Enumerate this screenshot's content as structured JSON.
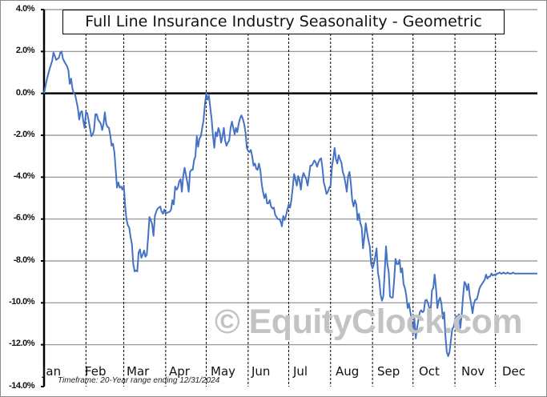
{
  "chart_data": {
    "type": "line",
    "title": "Full Line Insurance Industry Seasonality - Geometric",
    "xlabel": "",
    "ylabel": "",
    "ylim": [
      -14.0,
      4.0
    ],
    "yticks": [
      "4.0%",
      "2.0%",
      "0.0%",
      "-2.0%",
      "-4.0%",
      "-6.0%",
      "-8.0%",
      "-10.0%",
      "-12.0%",
      "-14.0%"
    ],
    "ytick_values": [
      4,
      2,
      0,
      -2,
      -4,
      -6,
      -8,
      -10,
      -12,
      -14
    ],
    "categories": [
      "Jan",
      "Feb",
      "Mar",
      "Apr",
      "May",
      "Jun",
      "Jul",
      "Aug",
      "Sep",
      "Oct",
      "Nov",
      "Dec"
    ],
    "grid": {
      "horizontal": true,
      "vertical_dashed_month_separators": true
    },
    "legend": null,
    "annotation": "Timeframe: 20-Year range ending 12/31/2024",
    "watermark": "© EquityClock.com",
    "series": [
      {
        "name": "Full Line Insurance Industry",
        "color": "#4472c4",
        "x_day": [
          0,
          2,
          4,
          6,
          7,
          9,
          11,
          12,
          13,
          14,
          16,
          17,
          18,
          19,
          20,
          21,
          22,
          23,
          25,
          26,
          27,
          28,
          29,
          30,
          31,
          32,
          33,
          35,
          36,
          37,
          38,
          39,
          40,
          42,
          43,
          44,
          45,
          46,
          47,
          48,
          49,
          50,
          51,
          52,
          53,
          54,
          55,
          56,
          57,
          58,
          59,
          60,
          61,
          62,
          63,
          64,
          65,
          66,
          67,
          68,
          69,
          70,
          71,
          72,
          73,
          74,
          75,
          76,
          77,
          78,
          79,
          80,
          81,
          82,
          83,
          84,
          86,
          87,
          88,
          89,
          90,
          91,
          93,
          94,
          95,
          96,
          97,
          98,
          99,
          100,
          101,
          102,
          103,
          104,
          105,
          106,
          107,
          108,
          109,
          110,
          111,
          112,
          113,
          114,
          115,
          116,
          117,
          118,
          119,
          120,
          121,
          122,
          123,
          124,
          125,
          126,
          127,
          128,
          129,
          130,
          131,
          132,
          133,
          134,
          135,
          136,
          137,
          138,
          139,
          140,
          141,
          142,
          143,
          144,
          145,
          146,
          147,
          148,
          149,
          150,
          151,
          152,
          153,
          154,
          155,
          156,
          157,
          158,
          159,
          160,
          161,
          162,
          163,
          164,
          165,
          166,
          167,
          168,
          169,
          170,
          171,
          172,
          173,
          174,
          175,
          176,
          177,
          178,
          179,
          180,
          181,
          182,
          183,
          184,
          185,
          186,
          187,
          188,
          189,
          190,
          191,
          192,
          193,
          194,
          195,
          196,
          197,
          198,
          199,
          200,
          201,
          202,
          203,
          204,
          205,
          206,
          207,
          208,
          209,
          210,
          211,
          212,
          213,
          214,
          215,
          216,
          217,
          218,
          219,
          220,
          221,
          222,
          223,
          224,
          225,
          226,
          227,
          228,
          229,
          230,
          231,
          232,
          233,
          234,
          235,
          236,
          237,
          238,
          239,
          240,
          241,
          242,
          243,
          244,
          245,
          246,
          247,
          248,
          249,
          250,
          251,
          252,
          253,
          254,
          255,
          256,
          257,
          258,
          259,
          260,
          261,
          262,
          263,
          264,
          265,
          266,
          267,
          268,
          269,
          270,
          271,
          272,
          273,
          274,
          275,
          276,
          277,
          278,
          279,
          280,
          281,
          282,
          283,
          284,
          285,
          286,
          287,
          288,
          289,
          290,
          291,
          292,
          293,
          294,
          295,
          296,
          297,
          298,
          299,
          300,
          301,
          302,
          303,
          304,
          305,
          306,
          307,
          308,
          309,
          310,
          311,
          312,
          313,
          314,
          315,
          316,
          317,
          318,
          319,
          320,
          321,
          322,
          323,
          324,
          325,
          326,
          327,
          328,
          329,
          330,
          331,
          332,
          333,
          334,
          335,
          336,
          337,
          338,
          339,
          340,
          341,
          342,
          343,
          344,
          345,
          346,
          347,
          348,
          349,
          350,
          351,
          352,
          353,
          354,
          355,
          356,
          357,
          358,
          359,
          360,
          361,
          362,
          363,
          364,
          365
        ],
        "values_pct": [
          0.0,
          0.65,
          1.15,
          1.55,
          1.95,
          1.6,
          1.7,
          1.95,
          2.0,
          1.65,
          1.4,
          1.3,
          1.1,
          0.45,
          0.7,
          0.25,
          0.0,
          -0.05,
          -0.7,
          -1.25,
          -0.9,
          -0.85,
          -1.3,
          -1.65,
          -0.9,
          -0.95,
          -1.3,
          -2.05,
          -1.95,
          -1.75,
          -1.0,
          -1.0,
          -1.25,
          -1.45,
          -1.75,
          -1.45,
          -0.9,
          -1.45,
          -1.6,
          -1.65,
          -2.0,
          -2.5,
          -2.4,
          -2.8,
          -3.6,
          -4.5,
          -4.25,
          -4.5,
          -4.45,
          -4.6,
          -4.4,
          -5.4,
          -6.0,
          -6.3,
          -6.4,
          -6.85,
          -7.2,
          -8.15,
          -8.5,
          -8.45,
          -8.5,
          -7.6,
          -7.45,
          -7.85,
          -7.7,
          -7.5,
          -7.8,
          -7.7,
          -6.85,
          -5.9,
          -6.05,
          -6.25,
          -6.8,
          -5.85,
          -5.65,
          -5.5,
          -5.4,
          -5.65,
          -5.75,
          -5.55,
          -5.75,
          -5.7,
          -5.65,
          -5.55,
          -5.1,
          -5.3,
          -4.45,
          -4.6,
          -4.5,
          -4.2,
          -4.1,
          -4.7,
          -3.95,
          -3.55,
          -3.9,
          -4.25,
          -4.7,
          -3.75,
          -3.65,
          -3.65,
          -3.2,
          -3.0,
          -2.05,
          -2.55,
          -2.15,
          -2.05,
          -1.65,
          -1.3,
          -0.55,
          0.0,
          -0.3,
          -0.1,
          -0.7,
          -1.25,
          -2.05,
          -2.6,
          -1.85,
          -2.05,
          -1.65,
          -1.85,
          -2.35,
          -2.05,
          -1.65,
          -2.25,
          -2.5,
          -2.35,
          -2.25,
          -1.65,
          -1.35,
          -1.65,
          -1.95,
          -1.65,
          -1.85,
          -1.45,
          -1.2,
          -1.05,
          -1.2,
          -1.45,
          -1.85,
          -2.6,
          -2.75,
          -2.8,
          -2.7,
          -3.0,
          -3.45,
          -3.35,
          -3.6,
          -3.65,
          -3.35,
          -3.65,
          -4.3,
          -4.7,
          -5.0,
          -4.8,
          -5.25,
          -5.25,
          -5.1,
          -5.4,
          -5.5,
          -5.45,
          -5.8,
          -5.9,
          -6.0,
          -6.0,
          -6.1,
          -6.35,
          -5.85,
          -6.05,
          -5.85,
          -5.55,
          -5.3,
          -5.45,
          -5.1,
          -4.5,
          -3.85,
          -4.1,
          -4.4,
          -3.95,
          -4.15,
          -4.6,
          -4.05,
          -3.8,
          -3.95,
          -4.1,
          -4.4,
          -3.95,
          -3.45,
          -3.45,
          -3.35,
          -3.2,
          -3.3,
          -3.5,
          -3.3,
          -3.15,
          -3.1,
          -3.6,
          -4.25,
          -4.5,
          -4.8,
          -4.7,
          -4.5,
          -4.4,
          -3.5,
          -3.1,
          -2.6,
          -3.15,
          -3.35,
          -2.95,
          -3.15,
          -3.3,
          -3.75,
          -3.95,
          -4.3,
          -4.7,
          -3.95,
          -3.75,
          -4.3,
          -5.1,
          -5.4,
          -5.1,
          -5.3,
          -6.05,
          -5.75,
          -6.2,
          -6.4,
          -7.4,
          -6.85,
          -6.2,
          -6.65,
          -7.0,
          -7.3,
          -8.15,
          -8.35,
          -8.15,
          -7.8,
          -7.4,
          -8.55,
          -8.9,
          -9.6,
          -9.9,
          -9.7,
          -8.55,
          -7.3,
          -8.15,
          -8.55,
          -9.7,
          -9.75,
          -9.75,
          -8.95,
          -7.9,
          -8.15,
          -8.15,
          -7.95,
          -8.55,
          -8.35,
          -9.1,
          -9.3,
          -9.65,
          -10.25,
          -10.05,
          -10.45,
          -10.8,
          -11.5,
          -10.75,
          -11.7,
          -11.2,
          -10.8,
          -10.45,
          -10.35,
          -10.45,
          -10.4,
          -9.9,
          -9.85,
          -10.0,
          -10.25,
          -10.4,
          -9.4,
          -9.3,
          -8.65,
          -9.3,
          -10.25,
          -9.9,
          -9.75,
          -10.05,
          -10.75,
          -10.45,
          -11.6,
          -12.35,
          -12.55,
          -12.35,
          -11.8,
          -11.25,
          -11.15,
          -10.85,
          -10.65,
          -10.65,
          -10.55,
          -11.2,
          -10.55,
          -9.7,
          -9.0,
          -9.1,
          -9.4,
          -9.1,
          -9.7,
          -10.05,
          -10.5,
          -10.05,
          -9.85,
          -9.85,
          -9.65,
          -9.35,
          -9.2,
          -9.1,
          -9.0,
          -8.9,
          -8.65,
          -8.85,
          -8.75,
          -8.75,
          -8.6,
          -8.7,
          -8.65,
          -8.7,
          -8.6,
          -8.6,
          -8.55,
          -8.6,
          -8.6,
          -8.55,
          -8.6,
          -8.6,
          -8.55,
          -8.6,
          -8.6,
          -8.6,
          -8.55,
          -8.6,
          -8.6,
          -8.6,
          -8.6,
          -8.6,
          -8.6,
          -8.6,
          -8.6,
          -8.6,
          -8.6,
          -8.6,
          -8.6,
          -8.6,
          -8.6,
          -8.6,
          -8.6,
          -8.6,
          -8.6,
          -8.6,
          -8.6,
          -8.6,
          -8.6,
          -8.6,
          -8.6,
          -8.6,
          -8.6,
          -8.6,
          -8.6,
          -8.6,
          -8.6,
          -8.6,
          -8.6,
          -8.6
        ]
      }
    ],
    "key_points": [
      {
        "label": "Jan start",
        "value": 0.0
      },
      {
        "label": "Mid-Jan peak",
        "value": 2.0
      },
      {
        "label": "Early Mar low",
        "value": -8.5
      },
      {
        "label": "Early May peak",
        "value": 0.0
      },
      {
        "label": "Late Jun low",
        "value": -6.3
      },
      {
        "label": "Late Aug peak",
        "value": -2.6
      },
      {
        "label": "Early Nov low",
        "value": -12.5
      },
      {
        "label": "Year end",
        "value": -8.6
      }
    ]
  },
  "labels": {
    "title": "Full Line Insurance Industry Seasonality - Geometric",
    "timeframe": "Timeframe: 20-Year range ending 12/31/2024",
    "watermark": "© EquityClock.com",
    "months": [
      "Jan",
      "Feb",
      "Mar",
      "Apr",
      "May",
      "Jun",
      "Jul",
      "Aug",
      "Sep",
      "Oct",
      "Nov",
      "Dec"
    ],
    "yticks": [
      "4.0%",
      "2.0%",
      "0.0%",
      "-2.0%",
      "-4.0%",
      "-6.0%",
      "-8.0%",
      "-10.0%",
      "-12.0%",
      "-14.0%"
    ]
  },
  "colors": {
    "line": "#4472c4",
    "grid": "#8c8c8c",
    "axis": "#000000",
    "watermark": "#c3c3c3"
  }
}
